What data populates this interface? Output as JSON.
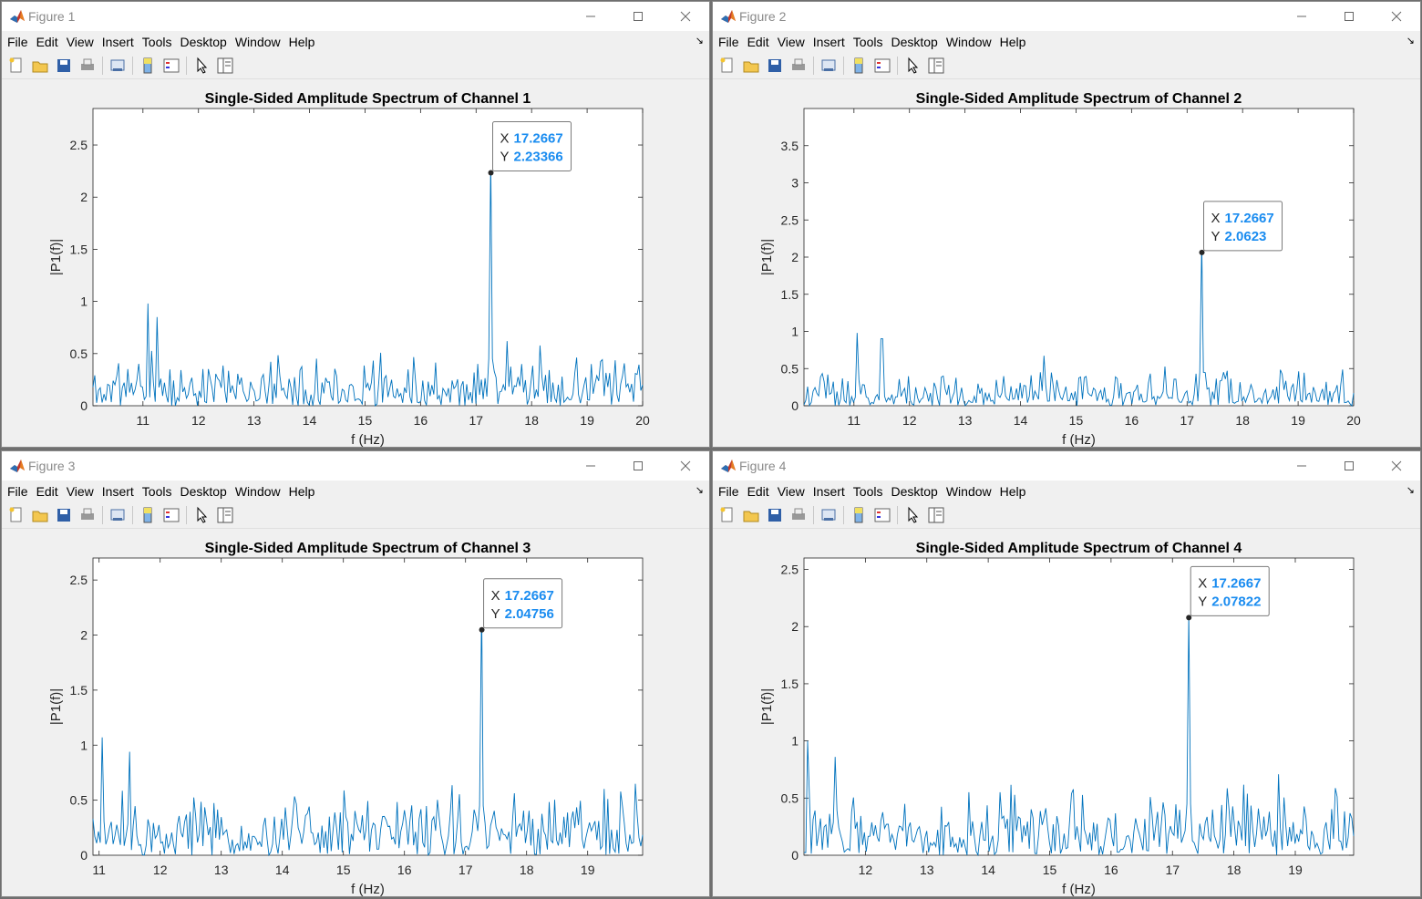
{
  "windows": [
    {
      "title": "Figure 1",
      "menu": [
        "File",
        "Edit",
        "View",
        "Insert",
        "Tools",
        "Desktop",
        "Window",
        "Help"
      ],
      "chart_data": {
        "type": "line",
        "title": "Single-Sided Amplitude Spectrum of Channel 1",
        "xlabel": "f (Hz)",
        "ylabel": "|P1(f)|",
        "xlim": [
          10.1,
          20
        ],
        "ylim": [
          0,
          2.85
        ],
        "xticks": [
          11,
          12,
          13,
          14,
          15,
          16,
          17,
          18,
          19,
          20
        ],
        "yticks": [
          0,
          0.5,
          1,
          1.5,
          2,
          2.5
        ],
        "ytick_labels": [
          "0",
          "0.5",
          "1",
          "1.5",
          "2",
          "2.5"
        ],
        "peak": {
          "x": 17.2667,
          "y": 2.23366
        },
        "noise_seed": 11,
        "noise_level": 0.28,
        "low_bump": [
          {
            "x": 11.1,
            "y": 0.98
          },
          {
            "x": 11.25,
            "y": 0.85
          }
        ],
        "datatip": {
          "x_label": "X",
          "x_value": "17.2667",
          "y_label": "Y",
          "y_value": "2.23366"
        },
        "color": "#0072bd"
      }
    },
    {
      "title": "Figure 2",
      "menu": [
        "File",
        "Edit",
        "View",
        "Insert",
        "Tools",
        "Desktop",
        "Window",
        "Help"
      ],
      "chart_data": {
        "type": "line",
        "title": "Single-Sided Amplitude Spectrum of Channel 2",
        "xlabel": "f (Hz)",
        "ylabel": "|P1(f)|",
        "xlim": [
          10.1,
          20
        ],
        "ylim": [
          0,
          4
        ],
        "xticks": [
          11,
          12,
          13,
          14,
          15,
          16,
          17,
          18,
          19,
          20
        ],
        "yticks": [
          0,
          0.5,
          1,
          1.5,
          2,
          2.5,
          3,
          3.5
        ],
        "ytick_labels": [
          "0",
          "0.5",
          "1",
          "1.5",
          "2",
          "2.5",
          "3",
          "3.5"
        ],
        "peak": {
          "x": 17.2667,
          "y": 2.0623
        },
        "noise_seed": 23,
        "noise_level": 0.26,
        "low_bump": [
          {
            "x": 11.05,
            "y": 0.98
          },
          {
            "x": 11.5,
            "y": 0.9
          }
        ],
        "datatip": {
          "x_label": "X",
          "x_value": "17.2667",
          "y_label": "Y",
          "y_value": "2.0623"
        },
        "color": "#0072bd"
      }
    },
    {
      "title": "Figure 3",
      "menu": [
        "File",
        "Edit",
        "View",
        "Insert",
        "Tools",
        "Desktop",
        "Window",
        "Help"
      ],
      "chart_data": {
        "type": "line",
        "title": "Single-Sided Amplitude Spectrum of Channel 3",
        "xlabel": "f (Hz)",
        "ylabel": "|P1(f)|",
        "xlim": [
          10.9,
          19.9
        ],
        "ylim": [
          0,
          2.7
        ],
        "xticks": [
          11,
          12,
          13,
          14,
          15,
          16,
          17,
          18,
          19
        ],
        "yticks": [
          0,
          0.5,
          1,
          1.5,
          2,
          2.5
        ],
        "ytick_labels": [
          "0",
          "0.5",
          "1",
          "1.5",
          "2",
          "2.5"
        ],
        "peak": {
          "x": 17.2667,
          "y": 2.04756
        },
        "noise_seed": 37,
        "noise_level": 0.32,
        "low_bump": [
          {
            "x": 11.05,
            "y": 1.07
          },
          {
            "x": 11.5,
            "y": 0.94
          }
        ],
        "datatip": {
          "x_label": "X",
          "x_value": "17.2667",
          "y_label": "Y",
          "y_value": "2.04756"
        },
        "color": "#0072bd"
      }
    },
    {
      "title": "Figure 4",
      "menu": [
        "File",
        "Edit",
        "View",
        "Insert",
        "Tools",
        "Desktop",
        "Window",
        "Help"
      ],
      "chart_data": {
        "type": "line",
        "title": "Single-Sided Amplitude Spectrum of Channel 4",
        "xlabel": "f (Hz)",
        "ylabel": "|P1(f)|",
        "xlim": [
          11,
          19.95
        ],
        "ylim": [
          0,
          2.6
        ],
        "xticks": [
          12,
          13,
          14,
          15,
          16,
          17,
          18,
          19
        ],
        "yticks": [
          0,
          0.5,
          1,
          1.5,
          2,
          2.5
        ],
        "ytick_labels": [
          "0",
          "0.5",
          "1",
          "1.5",
          "2",
          "2.5"
        ],
        "peak": {
          "x": 17.2667,
          "y": 2.07822
        },
        "noise_seed": 51,
        "noise_level": 0.32,
        "low_bump": [
          {
            "x": 11.05,
            "y": 1.0
          },
          {
            "x": 11.5,
            "y": 0.86
          }
        ],
        "datatip": {
          "x_label": "X",
          "x_value": "17.2667",
          "y_label": "Y",
          "y_value": "2.07822"
        },
        "color": "#0072bd"
      }
    }
  ]
}
